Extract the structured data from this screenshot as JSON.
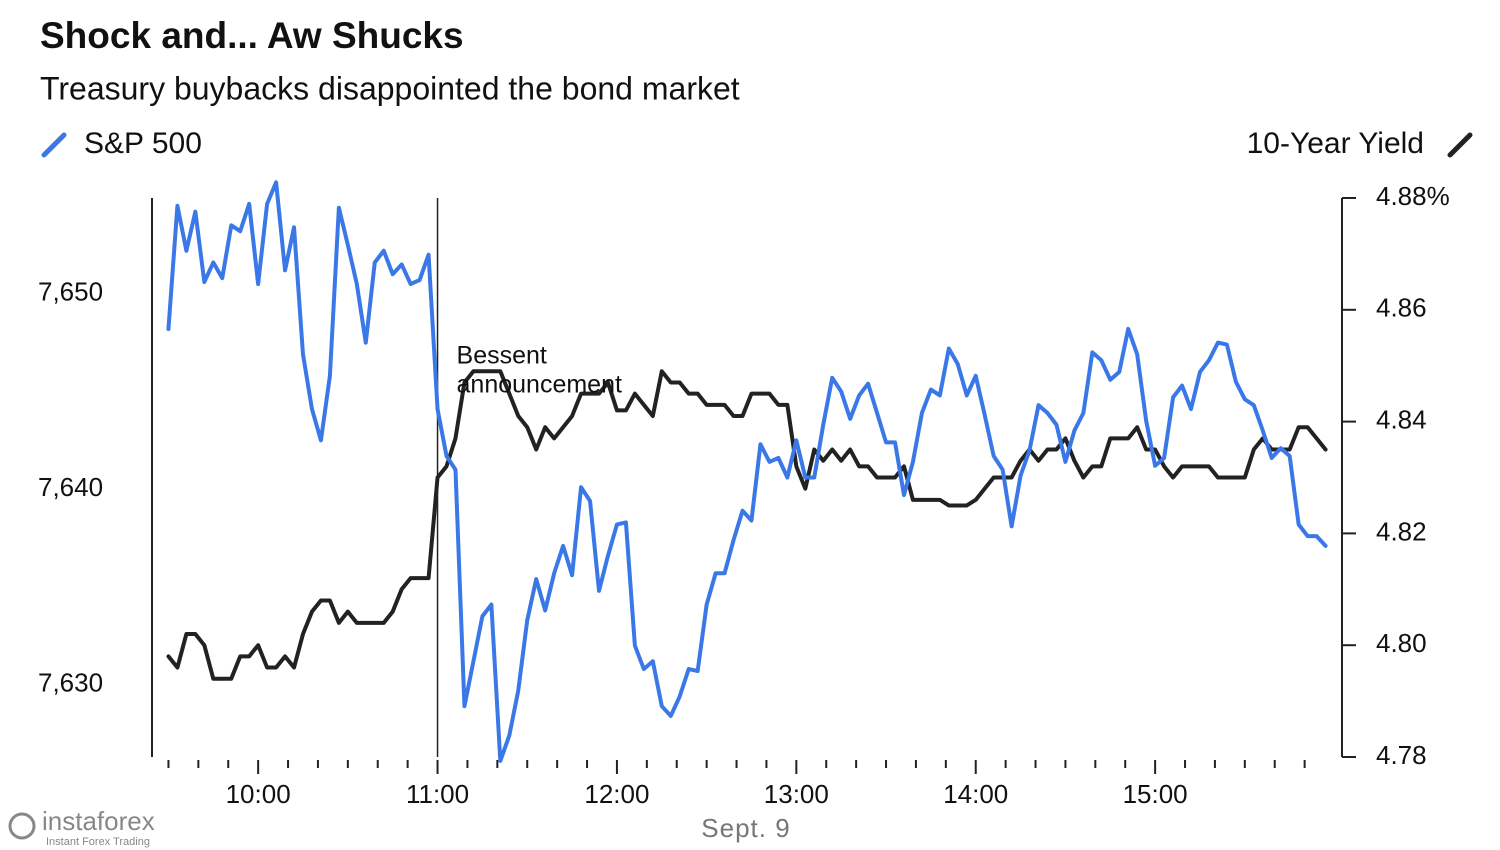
{
  "chart_data": {
    "type": "line",
    "title": "Shock and... Aw Shucks",
    "subtitle": "Treasury buybacks disappointed the bond market",
    "xlabel": "Sept. 9",
    "x": [
      570,
      573,
      576,
      579,
      582,
      585,
      588,
      591,
      594,
      597,
      600,
      603,
      606,
      609,
      612,
      615,
      618,
      621,
      624,
      627,
      630,
      633,
      636,
      639,
      642,
      645,
      648,
      651,
      654,
      657,
      660,
      663,
      666,
      669,
      672,
      675,
      678,
      681,
      684,
      687,
      690,
      693,
      696,
      699,
      702,
      705,
      708,
      711,
      714,
      717,
      720,
      723,
      726,
      729,
      732,
      735,
      738,
      741,
      744,
      747,
      750,
      753,
      756,
      759,
      762,
      765,
      768,
      771,
      774,
      777,
      780,
      783,
      786,
      789,
      792,
      795,
      798,
      801,
      804,
      807,
      810,
      813,
      816,
      819,
      822,
      825,
      828,
      831,
      834,
      837,
      840,
      843,
      846,
      849,
      852,
      855,
      858,
      861,
      864,
      867,
      870,
      873,
      876,
      879,
      882,
      885,
      888,
      891,
      894,
      897,
      900,
      903,
      906,
      909,
      912,
      915,
      918,
      921,
      924,
      927,
      930,
      933,
      936,
      939,
      942,
      945,
      948,
      951,
      954,
      957
    ],
    "series": [
      {
        "name": "S&P 500",
        "color": "#3b78e7",
        "axis": "y",
        "values": [
          7648.2,
          7654.5,
          7652.2,
          7654.2,
          7650.6,
          7651.6,
          7650.8,
          7653.5,
          7653.2,
          7654.6,
          7650.5,
          7654.6,
          7655.7,
          7651.2,
          7653.4,
          7646.9,
          7644.1,
          7642.5,
          7645.8,
          7654.4,
          7652.5,
          7650.5,
          7647.5,
          7651.6,
          7652.2,
          7651.0,
          7651.5,
          7650.5,
          7650.7,
          7652.0,
          7644.1,
          7641.7,
          7641.0,
          7628.9,
          7631.2,
          7633.5,
          7634.1,
          7626.1,
          7627.4,
          7629.7,
          7633.3,
          7635.4,
          7633.8,
          7635.7,
          7637.1,
          7635.6,
          7640.1,
          7639.4,
          7634.8,
          7636.6,
          7638.2,
          7638.3,
          7632.0,
          7630.8,
          7631.2,
          7628.9,
          7628.4,
          7629.4,
          7630.8,
          7630.7,
          7634.1,
          7635.7,
          7635.7,
          7637.4,
          7638.9,
          7638.4,
          7642.3,
          7641.4,
          7641.6,
          7640.6,
          7642.5,
          7640.6,
          7640.6,
          7643.3,
          7645.7,
          7645.0,
          7643.6,
          7644.8,
          7645.4,
          7643.9,
          7642.4,
          7642.4,
          7639.7,
          7641.4,
          7643.9,
          7645.1,
          7644.8,
          7647.2,
          7646.4,
          7644.8,
          7645.8,
          7643.8,
          7641.7,
          7641.0,
          7638.1,
          7640.7,
          7642.0,
          7644.3,
          7643.9,
          7643.3,
          7641.4,
          7643.0,
          7643.9,
          7647.0,
          7646.6,
          7645.6,
          7646.0,
          7648.2,
          7646.9,
          7643.5,
          7641.2,
          7641.6,
          7644.7,
          7645.3,
          7644.1,
          7646.0,
          7646.6,
          7647.5,
          7647.4,
          7645.5,
          7644.6,
          7644.3,
          7643.0,
          7641.6,
          7642.1,
          7641.7,
          7638.2,
          7637.6,
          7637.6,
          7637.1
        ]
      },
      {
        "name": "10-Year Yield",
        "color": "#222222",
        "axis": "y2",
        "values": [
          4.798,
          4.796,
          4.802,
          4.802,
          4.8,
          4.794,
          4.794,
          4.794,
          4.798,
          4.798,
          4.8,
          4.796,
          4.796,
          4.798,
          4.796,
          4.802,
          4.806,
          4.808,
          4.808,
          4.804,
          4.806,
          4.804,
          4.804,
          4.804,
          4.804,
          4.806,
          4.81,
          4.812,
          4.812,
          4.812,
          4.83,
          4.832,
          4.837,
          4.847,
          4.849,
          4.849,
          4.849,
          4.849,
          4.845,
          4.841,
          4.839,
          4.835,
          4.839,
          4.837,
          4.839,
          4.841,
          4.845,
          4.845,
          4.845,
          4.847,
          4.842,
          4.842,
          4.845,
          4.843,
          4.841,
          4.849,
          4.847,
          4.847,
          4.845,
          4.845,
          4.843,
          4.843,
          4.843,
          4.841,
          4.841,
          4.845,
          4.845,
          4.845,
          4.843,
          4.843,
          4.832,
          4.828,
          4.835,
          4.833,
          4.835,
          4.833,
          4.835,
          4.832,
          4.832,
          4.83,
          4.83,
          4.83,
          4.832,
          4.826,
          4.826,
          4.826,
          4.826,
          4.825,
          4.825,
          4.825,
          4.826,
          4.828,
          4.83,
          4.83,
          4.83,
          4.833,
          4.835,
          4.833,
          4.835,
          4.835,
          4.837,
          4.833,
          4.83,
          4.832,
          4.832,
          4.837,
          4.837,
          4.837,
          4.839,
          4.835,
          4.835,
          4.832,
          4.83,
          4.832,
          4.832,
          4.832,
          4.832,
          4.83,
          4.83,
          4.83,
          4.83,
          4.835,
          4.837,
          4.835,
          4.835,
          4.835,
          4.839,
          4.839,
          4.837,
          4.835
        ]
      }
    ],
    "xlim": [
      564.5,
      962.5
    ],
    "xticks": [
      {
        "value": 600,
        "label": "10:00"
      },
      {
        "value": 660,
        "label": "11:00"
      },
      {
        "value": 720,
        "label": "12:00"
      },
      {
        "value": 780,
        "label": "13:00"
      },
      {
        "value": 840,
        "label": "14:00"
      },
      {
        "value": 900,
        "label": "15:00"
      }
    ],
    "xminorticks": [
      570,
      580,
      590,
      610,
      620,
      630,
      640,
      650,
      670,
      680,
      690,
      700,
      710,
      730,
      740,
      750,
      760,
      770,
      790,
      800,
      810,
      820,
      830,
      850,
      860,
      870,
      880,
      890,
      910,
      920,
      930,
      940,
      950
    ],
    "ylim": [
      7626.3,
      7654.9
    ],
    "yticks": [
      {
        "value": 7630,
        "label": "7,630"
      },
      {
        "value": 7640,
        "label": "7,640"
      },
      {
        "value": 7650,
        "label": "7,650"
      }
    ],
    "y2lim": [
      4.78,
      4.88
    ],
    "y2ticks": [
      {
        "value": 4.78,
        "label": "4.78"
      },
      {
        "value": 4.8,
        "label": "4.80"
      },
      {
        "value": 4.82,
        "label": "4.82"
      },
      {
        "value": 4.84,
        "label": "4.84"
      },
      {
        "value": 4.86,
        "label": "4.86"
      },
      {
        "value": 4.88,
        "label": "4.88%"
      }
    ],
    "annotation": {
      "x": 660,
      "lines": [
        "Bessent",
        "announcement"
      ]
    },
    "grid": false
  },
  "watermark": {
    "name": "instaforex",
    "tagline": "Instant Forex Trading"
  }
}
